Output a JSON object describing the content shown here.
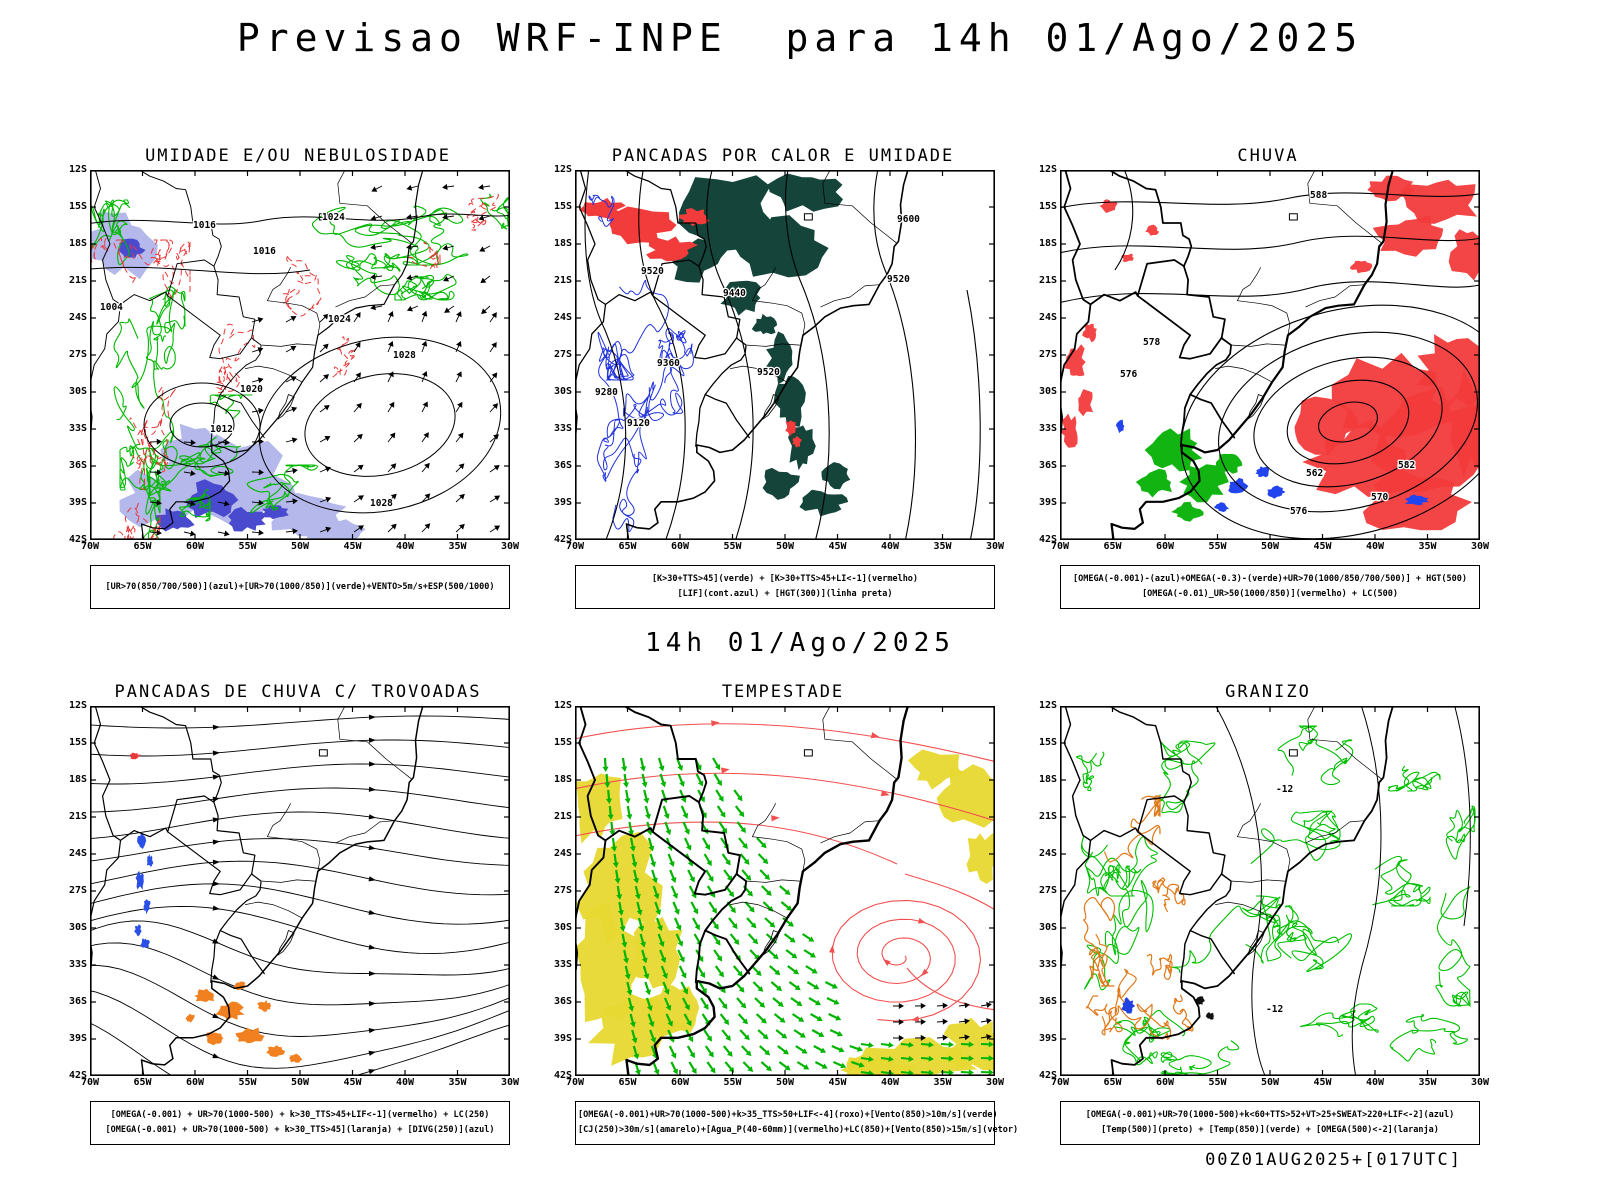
{
  "title": "Previsao WRF-INPE  para 14h 01/Ago/2025",
  "valid_time_label": "14h 01/Ago/2025",
  "run_label": "00Z01AUG2025+[017UTC]",
  "axes": {
    "lat_labels": [
      "12S",
      "15S",
      "18S",
      "21S",
      "24S",
      "27S",
      "30S",
      "33S",
      "36S",
      "39S",
      "42S"
    ],
    "lon_labels": [
      "70W",
      "65W",
      "60W",
      "55W",
      "50W",
      "45W",
      "40W",
      "35W",
      "30W"
    ]
  },
  "colors": {
    "contour_green": "#00b800",
    "contour_red": "#e83838",
    "contour_blue": "#2233dd",
    "shade_blue_light": "#b4b8ea",
    "shade_blue_dark": "#4a4ace",
    "shade_teal": "#14443a",
    "shade_red": "#f23b3b",
    "shade_green": "#12b412",
    "shade_blue": "#2244ee",
    "spot_orange": "#f08020",
    "shade_yellow": "#e8d832",
    "vector_green": "#00b400",
    "stream_red": "#f25050",
    "hail_green": "#00bf00",
    "hail_orange": "#e07818"
  },
  "panels": [
    {
      "id": "umidade",
      "title": "UMIDADE E/OU NEBULOSIDADE",
      "caption_lines": [
        "[UR>70(850/700/500)](azul)+[UR>70(1000/850)](verde)+VENTO>5m/s+ESP(500/1000)"
      ],
      "contour_labels": [
        "1016",
        "1024",
        "1016",
        "1020",
        "1024",
        "1028",
        "1012",
        "1004",
        "1028"
      ]
    },
    {
      "id": "pancadas-calor",
      "title": "PANCADAS POR CALOR E UMIDADE",
      "caption_lines": [
        "[K>30+TTS>45](verde) + [K>30+TTS>45+LI<-1](vermelho)",
        "[LIF](cont.azul) + [HGT(300)](linha preta)"
      ],
      "contour_labels": [
        "9520",
        "9600",
        "9520",
        "9520",
        "9440",
        "9360",
        "9120",
        "9280"
      ]
    },
    {
      "id": "chuva",
      "title": "CHUVA",
      "caption_lines": [
        "[OMEGA(-0.001)-(azul)+OMEGA(-0.3)-(verde)+UR>70(1000/850/700/500)] + HGT(500)",
        "[OMEGA(-0.01)_UR>50(1000/850)](vermelho) + LC(500)"
      ],
      "contour_labels": [
        "588",
        "578",
        "576",
        "582",
        "570",
        "562",
        "576"
      ]
    },
    {
      "id": "trovoadas",
      "title": "PANCADAS DE CHUVA C/ TROVOADAS",
      "caption_lines": [
        "[OMEGA(-0.001) + UR>70(1000-500) + k>30_TTS>45+LIF<-1](vermelho) + LC(250)",
        "[OMEGA(-0.001) + UR>70(1000-500) + k>30_TTS>45](laranja) + [DIVG(250)](azul)"
      ],
      "contour_labels": []
    },
    {
      "id": "tempestade",
      "title": "TEMPESTADE",
      "caption_lines": [
        "[OMEGA(-0.001)+UR>70(1000-500)+k>35_TTS>50+LIF<-4](roxo)+[Vento(850)>10m/s](verde)",
        "[CJ(250)>30m/s](amarelo)+[Agua_P(40-60mm)](vermelho)+LC(850)+[Vento(850)>15m/s](vetor)"
      ],
      "contour_labels": []
    },
    {
      "id": "granizo",
      "title": "GRANIZO",
      "caption_lines": [
        "[OMEGA(-0.001)+UR>70(1000-500)+k<60+TTS>52+VT>25+SWEAT>220+LIF<-2](azul)",
        "[Temp(500)](preto) + [Temp(850)](verde) + [OMEGA(500)<-2](laranja)"
      ],
      "contour_labels": [
        "-12",
        "-12"
      ]
    }
  ]
}
